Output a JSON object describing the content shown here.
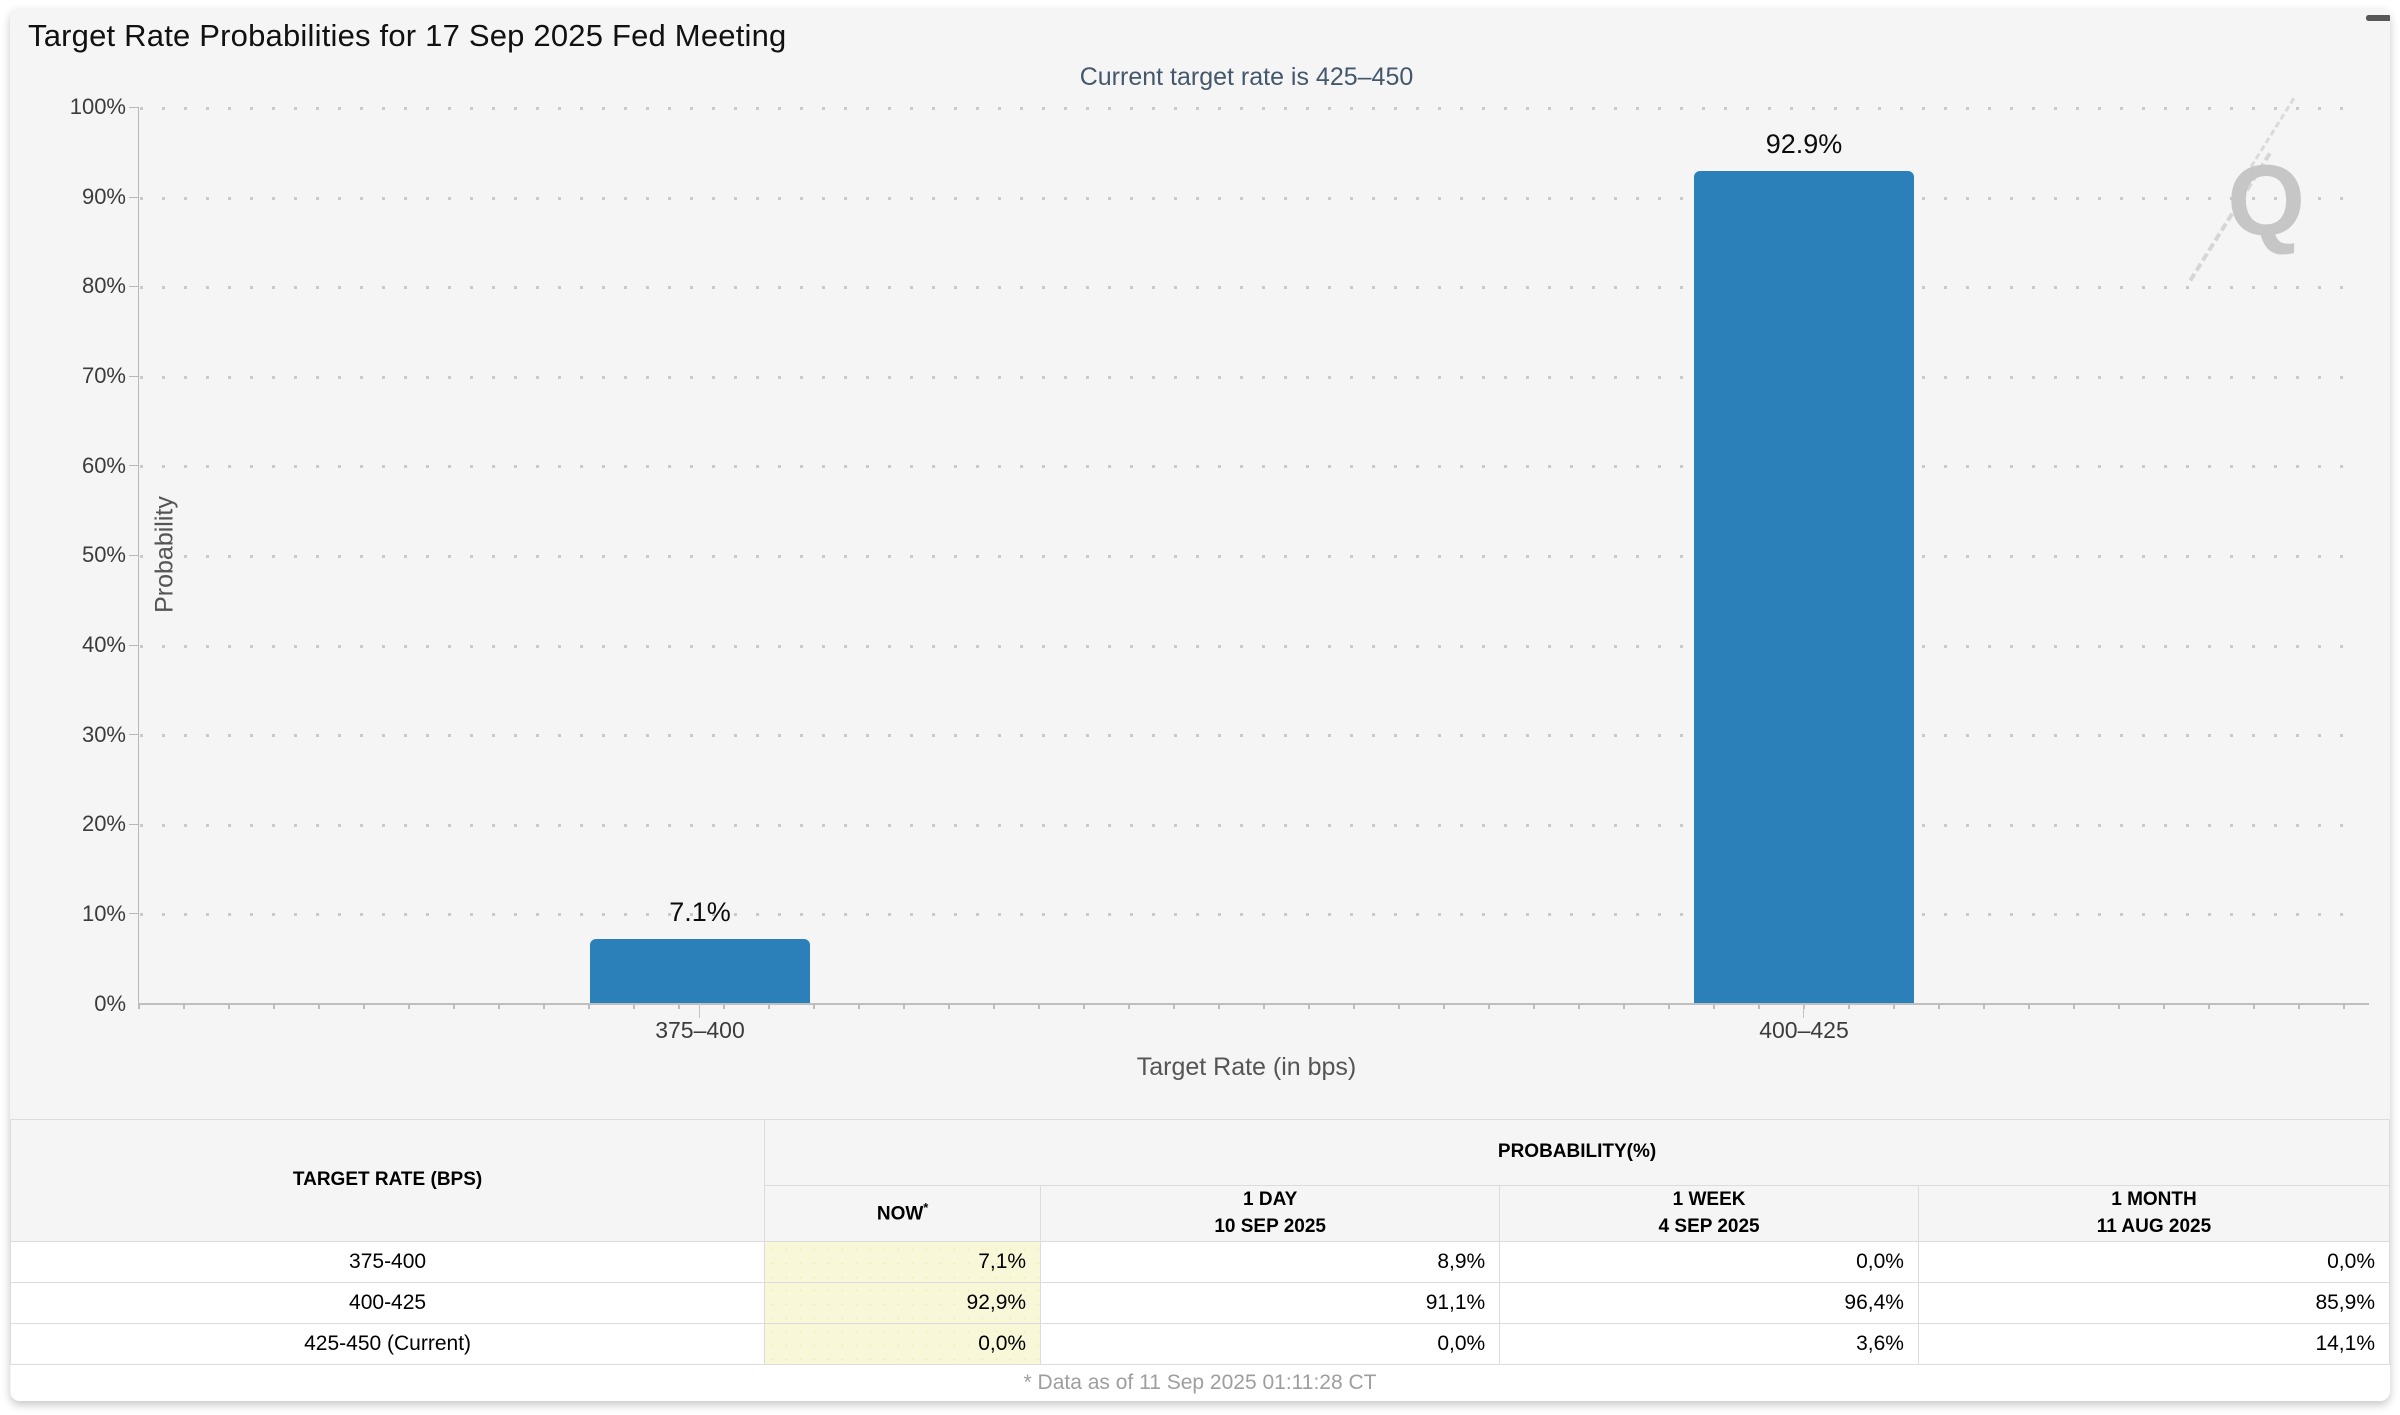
{
  "header": {
    "title": "Target Rate Probabilities for 17 Sep 2025 Fed Meeting"
  },
  "chart_data": {
    "type": "bar",
    "title": "Current target rate is 425–450",
    "categories": [
      "375–400",
      "400–425"
    ],
    "values": [
      7.1,
      92.9
    ],
    "value_labels": [
      "7.1%",
      "92.9%"
    ],
    "xlabel": "Target Rate (in bps)",
    "ylabel": "Probability",
    "ylim": [
      0,
      100
    ],
    "yticks": [
      "100%",
      "90%",
      "80%",
      "70%",
      "60%",
      "50%",
      "40%",
      "30%",
      "20%",
      "10%",
      "0%"
    ],
    "grid": "dotted horizontal gridlines every 10%",
    "legend": "none",
    "bar_color": "#2b80b9",
    "watermark": "Q"
  },
  "table": {
    "col1_header": "TARGET RATE (BPS)",
    "group_header": "PROBABILITY(%)",
    "columns": [
      {
        "label": "NOW",
        "sup": "*"
      },
      {
        "label": "1 DAY",
        "sub": "10 SEP 2025"
      },
      {
        "label": "1 WEEK",
        "sub": "4 SEP 2025"
      },
      {
        "label": "1 MONTH",
        "sub": "11 AUG 2025"
      }
    ],
    "rows": [
      {
        "rate": "375-400",
        "now": "7,1%",
        "day": "8,9%",
        "week": "0,0%",
        "month": "0,0%"
      },
      {
        "rate": "400-425",
        "now": "92,9%",
        "day": "91,1%",
        "week": "96,4%",
        "month": "85,9%"
      },
      {
        "rate": "425-450 (Current)",
        "now": "0,0%",
        "day": "0,0%",
        "week": "3,6%",
        "month": "14,1%"
      }
    ],
    "footnote": "* Data as of 11 Sep 2025 01:11:28 CT",
    "highlight_color": "#f8f8d8"
  }
}
